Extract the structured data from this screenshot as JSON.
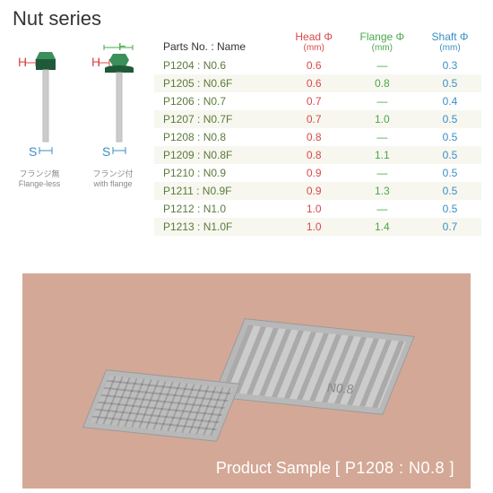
{
  "title": "Nut series",
  "diagram": {
    "labels": {
      "H": "H",
      "F": "F",
      "S": "S"
    },
    "flangeless_jp": "フランジ無",
    "flangeless_en": "Flange-less",
    "withflange_jp": "フランジ付",
    "withflange_en": "with flange",
    "colors": {
      "H": "#d94848",
      "F": "#4aa84a",
      "S": "#3a8fc4",
      "bolt_cap": "#3a8f5a",
      "bolt_cap_dark": "#1f5a38",
      "shaft": "#cccccc"
    }
  },
  "table": {
    "headers": {
      "parts": "Parts No. : Name",
      "head": "Head Φ",
      "flange": "Flange Φ",
      "shaft": "Shaft Φ",
      "unit": "(mm)"
    },
    "header_colors": {
      "parts": "#333333",
      "head": "#d94848",
      "flange": "#4aa84a",
      "shaft": "#3a8fc4"
    },
    "row_colors": {
      "parts": "#5a7a3a",
      "head": "#d94848",
      "flange": "#4aa84a",
      "shaft": "#3a8fc4"
    },
    "alt_row_bg": "#f7f7f0",
    "dash": "—",
    "rows": [
      {
        "parts": "P1204 : N0.6",
        "head": "0.6",
        "flange": "—",
        "shaft": "0.3"
      },
      {
        "parts": "P1205 : N0.6F",
        "head": "0.6",
        "flange": "0.8",
        "shaft": "0.5"
      },
      {
        "parts": "P1206 : N0.7",
        "head": "0.7",
        "flange": "—",
        "shaft": "0.4"
      },
      {
        "parts": "P1207 : N0.7F",
        "head": "0.7",
        "flange": "1.0",
        "shaft": "0.5"
      },
      {
        "parts": "P1208 : N0.8",
        "head": "0.8",
        "flange": "—",
        "shaft": "0.5"
      },
      {
        "parts": "P1209 : N0.8F",
        "head": "0.8",
        "flange": "1.1",
        "shaft": "0.5"
      },
      {
        "parts": "P1210 : N0.9",
        "head": "0.9",
        "flange": "—",
        "shaft": "0.5"
      },
      {
        "parts": "P1211 : N0.9F",
        "head": "0.9",
        "flange": "1.3",
        "shaft": "0.5"
      },
      {
        "parts": "P1212 : N1.0",
        "head": "1.0",
        "flange": "—",
        "shaft": "0.5"
      },
      {
        "parts": "P1213 : N1.0F",
        "head": "1.0",
        "flange": "1.4",
        "shaft": "0.7"
      }
    ]
  },
  "photo": {
    "background": "#d4a896",
    "label_prefix": "Product Sample  ",
    "label_code": "[ P1208 : N0.8 ]",
    "tray_label": "N0.8"
  }
}
